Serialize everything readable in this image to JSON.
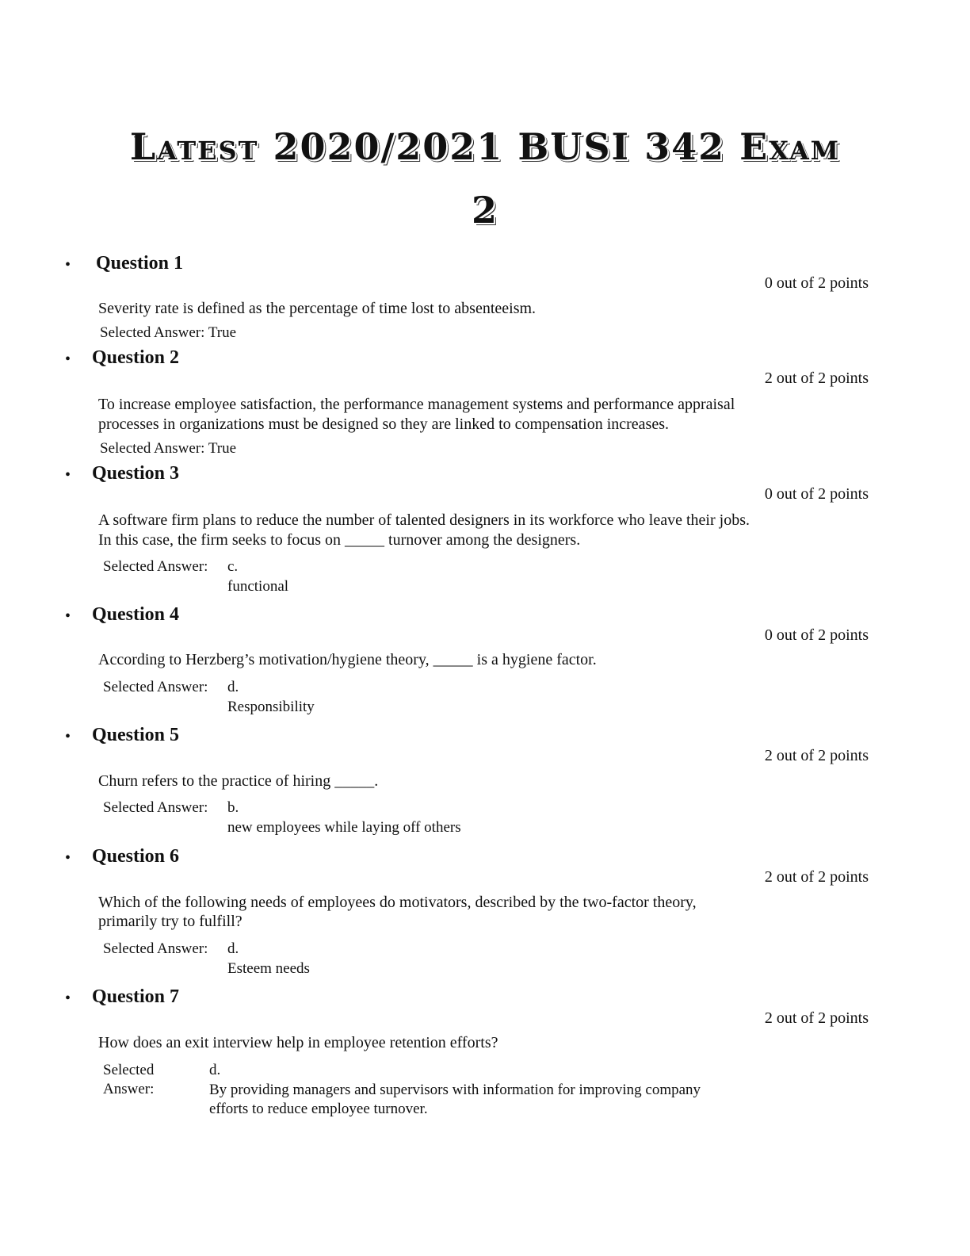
{
  "title": {
    "line1": "Latest 2020/2021 BUSI 342 Exam",
    "line2": "2"
  },
  "questions": [
    {
      "header": "Question 1",
      "points": "0 out of 2 points",
      "text": [
        "Severity rate is defined as the percentage of time lost to absenteeism."
      ],
      "answer_label": "Selected Answer:",
      "answer": "True"
    },
    {
      "header": "Question 2",
      "points": "2 out of 2 points",
      "text": [
        "To increase employee satisfaction, the performance management systems and performance appraisal",
        "processes in organizations must be designed so they are linked to compensation increases."
      ],
      "answer_label": "Selected Answer:",
      "answer": "True"
    },
    {
      "header": "Question 3",
      "points": "0 out of 2 points",
      "text": [
        "A software firm plans to reduce the number of talented designers in its workforce who leave their jobs.",
        "In this case, the firm seeks to focus on _____ turnover among the designers."
      ],
      "answer_label": "Selected Answer:",
      "answer_letter": "c.",
      "answer": "functional"
    },
    {
      "header": "Question 4",
      "points": "0 out of 2 points",
      "text": [
        "According to Herzberg’s motivation/hygiene theory, _____ is a hygiene factor."
      ],
      "answer_label": "Selected Answer:",
      "answer_letter": "d.",
      "answer": "Responsibility"
    },
    {
      "header": "Question 5",
      "points": "2 out of 2 points",
      "text": [
        "Churn refers to the practice of hiring  _____."
      ],
      "answer_label": "Selected Answer:",
      "answer_letter": "b.",
      "answer": "new employees while laying off others"
    },
    {
      "header": "Question 6",
      "points": "2 out of 2 points",
      "text": [
        "Which of the following needs of employees do motivators, described by the two-factor theory,",
        "primarily try to fulfill?"
      ],
      "answer_label": "Selected Answer:",
      "answer_letter": "d.",
      "answer": "Esteem needs"
    },
    {
      "header": "Question 7",
      "points": "2 out of 2 points",
      "text": [
        "How does an exit interview help in employee retention efforts?"
      ],
      "answer_label_lines": [
        "Selected",
        "Answer:"
      ],
      "answer_letter": "d.",
      "answer_lines": [
        "By providing managers and supervisors with information for improving company",
        "efforts to reduce employee turnover."
      ]
    }
  ],
  "bullet": "•"
}
